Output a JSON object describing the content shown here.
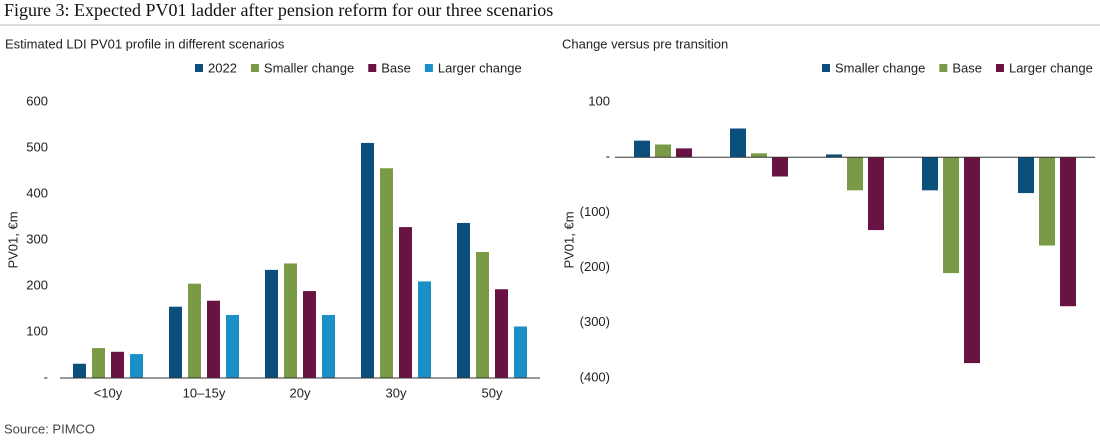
{
  "title": "Figure 3: Expected PV01 ladder after pension reform for our three scenarios",
  "source": "Source: PIMCO",
  "chart_data": [
    {
      "type": "bar",
      "subtitle": "Estimated LDI PV01 profile in different scenarios",
      "ylabel": "PV01, €m",
      "categories": [
        "<10y",
        "10–15y",
        "20y",
        "30y",
        "50y"
      ],
      "series": [
        {
          "name": "2022",
          "color": "#0b4f7c",
          "values": [
            31,
            155,
            235,
            511,
            337
          ]
        },
        {
          "name": "Smaller change",
          "color": "#7a9a45",
          "values": [
            65,
            205,
            249,
            456,
            274
          ]
        },
        {
          "name": "Base",
          "color": "#6b1244",
          "values": [
            57,
            168,
            189,
            328,
            193
          ]
        },
        {
          "name": "Larger change",
          "color": "#1a8fc8",
          "values": [
            52,
            137,
            137,
            210,
            112
          ]
        }
      ],
      "ylim": [
        0,
        600
      ],
      "yticks": [
        {
          "value": 0,
          "label": "-"
        },
        100,
        200,
        300,
        400,
        500,
        600
      ]
    },
    {
      "type": "bar",
      "subtitle": "Change versus pre transition",
      "ylabel": "PV01, €m",
      "categories": [
        null,
        null,
        null,
        null,
        null
      ],
      "series": [
        {
          "name": "Smaller change",
          "color": "#0b4f7c",
          "values": [
            30,
            52,
            5,
            -60,
            -65
          ]
        },
        {
          "name": "Base",
          "color": "#7a9a45",
          "values": [
            23,
            7,
            -60,
            -210,
            -160
          ]
        },
        {
          "name": "Larger change",
          "color": "#6b1244",
          "values": [
            16,
            -35,
            -132,
            -373,
            -270
          ]
        }
      ],
      "ylim": [
        -400,
        100
      ],
      "yticks": [
        {
          "value": -400,
          "label": "(400)"
        },
        {
          "value": -300,
          "label": "(300)"
        },
        {
          "value": -200,
          "label": "(200)"
        },
        {
          "value": -100,
          "label": "(100)"
        },
        {
          "value": 0,
          "label": "-"
        },
        100
      ]
    }
  ]
}
